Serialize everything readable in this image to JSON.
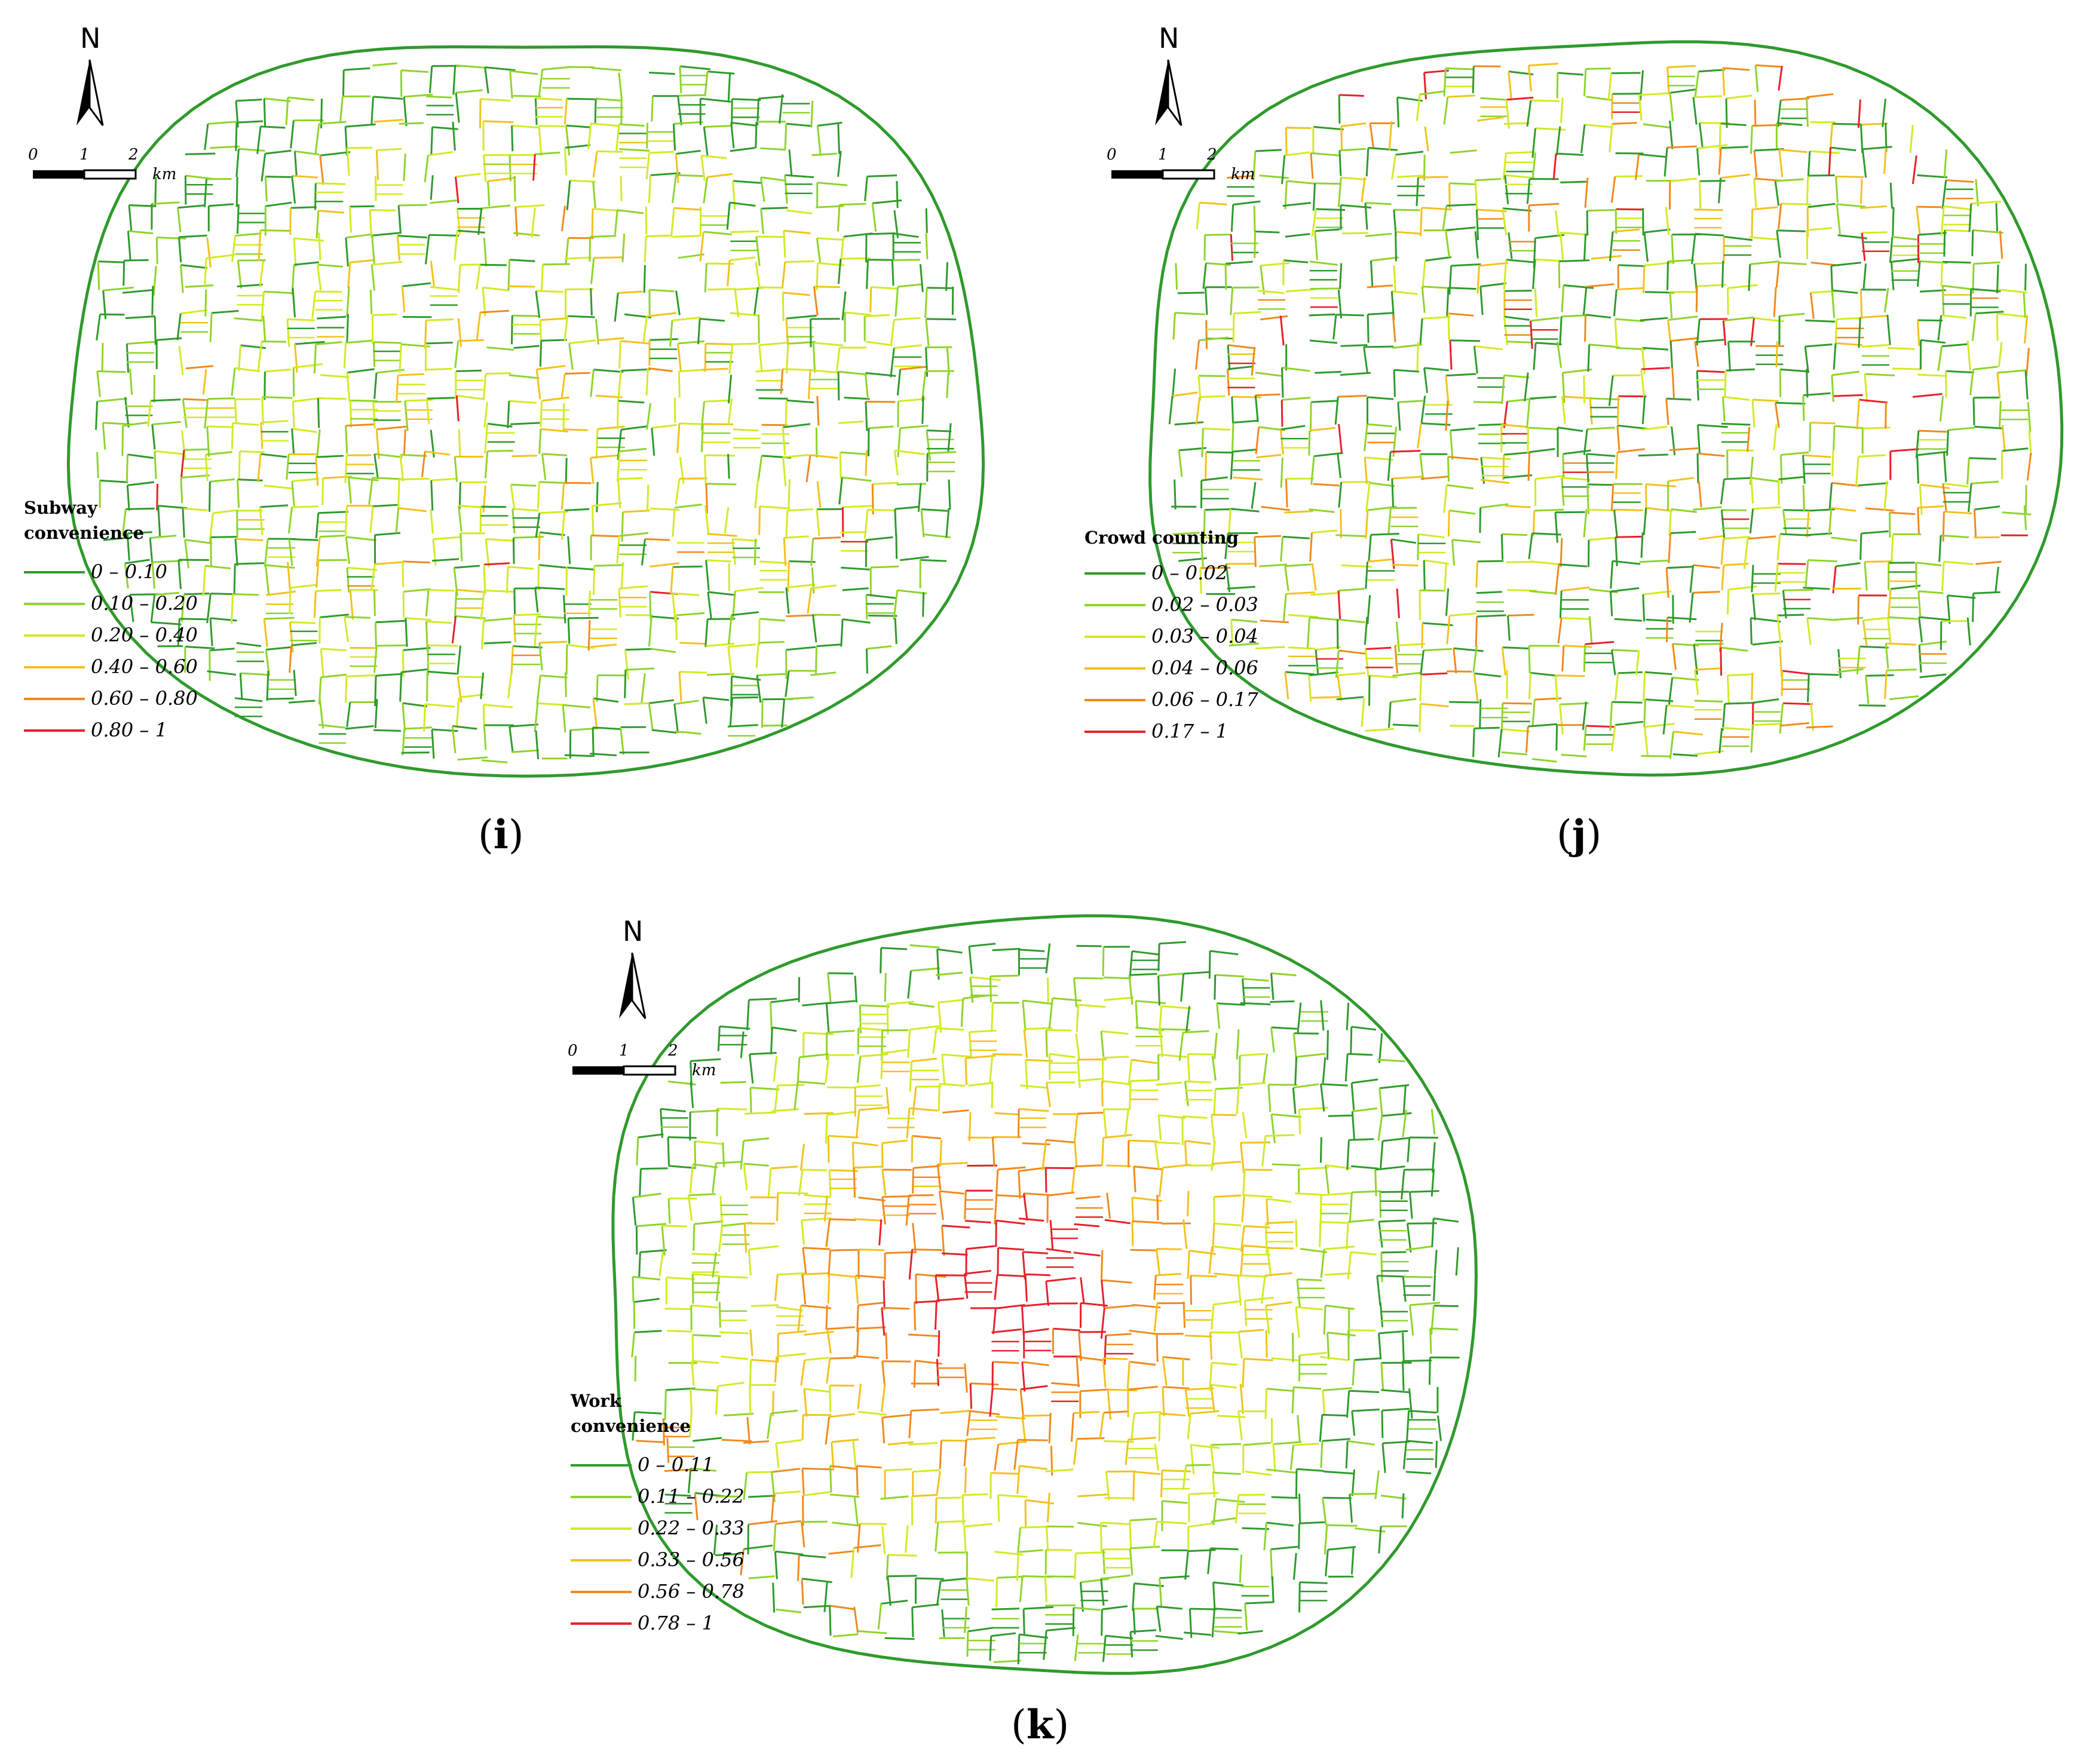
{
  "palette": {
    "dark_green": "#2f9a2c",
    "light_green": "#8fd42b",
    "yellow_green": "#d2ea24",
    "yellow": "#f2c21c",
    "orange": "#f08a1e",
    "red": "#e8202a"
  },
  "panels": [
    {
      "id": "i",
      "label_open": "(",
      "label_letter": "i",
      "label_close": ")",
      "north": "N",
      "scale": {
        "ticks": [
          "0",
          "1",
          "2"
        ],
        "unit": "km"
      },
      "legend": {
        "title_lines": [
          "Subway",
          "convenience"
        ],
        "classes": [
          {
            "label": "0 – 0.10",
            "color": "#2f9a2c"
          },
          {
            "label": "0.10 – 0.20",
            "color": "#8fd42b"
          },
          {
            "label": "0.20 – 0.40",
            "color": "#d2ea24"
          },
          {
            "label": "0.40 – 0.60",
            "color": "#f2c21c"
          },
          {
            "label": "0.60 – 0.80",
            "color": "#f08a1e"
          },
          {
            "label": "0.80 – 1",
            "color": "#e8202a"
          }
        ]
      }
    },
    {
      "id": "j",
      "label_open": "(",
      "label_letter": "j",
      "label_close": ")",
      "north": "N",
      "scale": {
        "ticks": [
          "0",
          "1",
          "2"
        ],
        "unit": "km"
      },
      "legend": {
        "title_lines": [
          "Crowd counting"
        ],
        "classes": [
          {
            "label": "0 – 0.02",
            "color": "#2f9a2c"
          },
          {
            "label": "0.02 – 0.03",
            "color": "#8fd42b"
          },
          {
            "label": "0.03 – 0.04",
            "color": "#d2ea24"
          },
          {
            "label": "0.04 – 0.06",
            "color": "#f2c21c"
          },
          {
            "label": "0.06 – 0.17",
            "color": "#f08a1e"
          },
          {
            "label": "0.17 – 1",
            "color": "#e8202a"
          }
        ]
      }
    },
    {
      "id": "k",
      "label_open": "(",
      "label_letter": "k",
      "label_close": ")",
      "north": "N",
      "scale": {
        "ticks": [
          "0",
          "1",
          "2"
        ],
        "unit": "km"
      },
      "legend": {
        "title_lines": [
          "Work",
          "convenience"
        ],
        "classes": [
          {
            "label": "0 – 0.11",
            "color": "#2f9a2c"
          },
          {
            "label": "0.11 – 0.22",
            "color": "#8fd42b"
          },
          {
            "label": "0.22 – 0.33",
            "color": "#d2ea24"
          },
          {
            "label": "0.33 – 0.56",
            "color": "#f2c21c"
          },
          {
            "label": "0.56 – 0.78",
            "color": "#f08a1e"
          },
          {
            "label": "0.78 – 1",
            "color": "#e8202a"
          }
        ]
      }
    }
  ]
}
